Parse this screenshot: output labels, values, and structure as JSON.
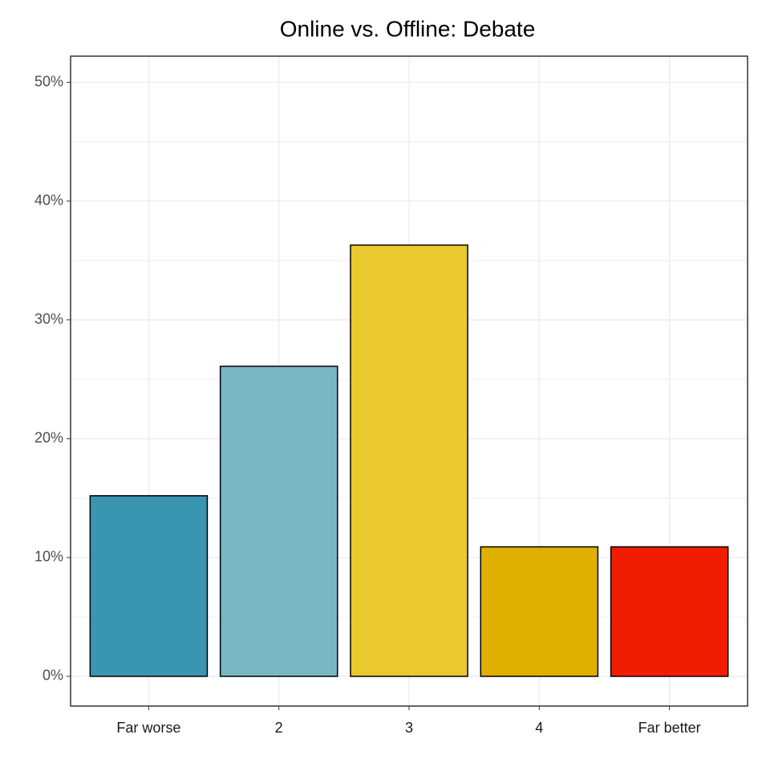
{
  "chart_data": {
    "type": "bar",
    "title": "Online vs. Offline: Debate",
    "categories": [
      "Far worse",
      "2",
      "3",
      "4",
      "Far better"
    ],
    "values": [
      15.2,
      26.1,
      36.3,
      10.9,
      10.9
    ],
    "colors": [
      "#3a96b0",
      "#79b6c5",
      "#e9c92d",
      "#e0af00",
      "#f21d00"
    ],
    "ylim": [
      -2.5,
      52.2
    ],
    "yticks": [
      {
        "value": 0,
        "label": "0%"
      },
      {
        "value": 10,
        "label": "10%"
      },
      {
        "value": 20,
        "label": "20%"
      },
      {
        "value": 30,
        "label": "30%"
      },
      {
        "value": 40,
        "label": "40%"
      },
      {
        "value": 50,
        "label": "50%"
      }
    ],
    "grid": true
  }
}
